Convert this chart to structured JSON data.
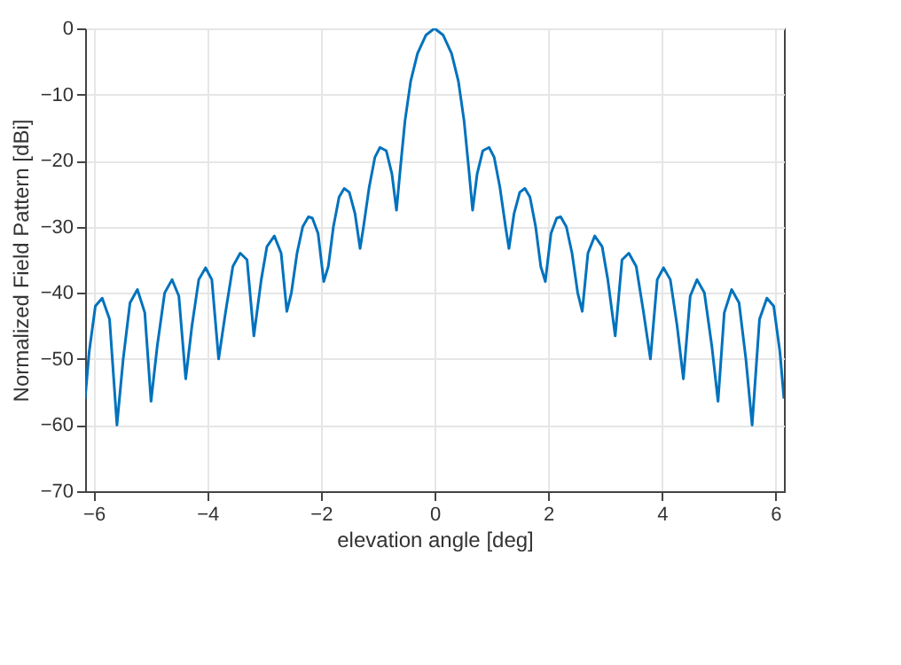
{
  "chart_data": {
    "type": "line",
    "xlabel": "elevation angle [deg]",
    "ylabel": "Normalized Field Pattern [dBi]",
    "xlim": [
      -6.15,
      6.15
    ],
    "ylim": [
      -70,
      0
    ],
    "xticks": [
      -6,
      -4,
      -2,
      0,
      2,
      4,
      6
    ],
    "yticks": [
      -70,
      -60,
      -50,
      -40,
      -30,
      -20,
      -10,
      0
    ],
    "grid": true,
    "marker": "none",
    "line_style": "solid",
    "x": [
      -6.15,
      -6.08,
      -5.97,
      -5.85,
      -5.72,
      -5.59,
      -5.48,
      -5.36,
      -5.23,
      -5.1,
      -4.99,
      -4.88,
      -4.75,
      -4.62,
      -4.5,
      -4.38,
      -4.27,
      -4.15,
      -4.03,
      -3.92,
      -3.8,
      -3.68,
      -3.55,
      -3.42,
      -3.3,
      -3.18,
      -3.05,
      -2.95,
      -2.82,
      -2.7,
      -2.6,
      -2.52,
      -2.42,
      -2.32,
      -2.22,
      -2.15,
      -2.05,
      -1.95,
      -1.87,
      -1.78,
      -1.68,
      -1.59,
      -1.5,
      -1.4,
      -1.31,
      -1.25,
      -1.15,
      -1.05,
      -0.96,
      -0.85,
      -0.75,
      -0.67,
      -0.6,
      -0.52,
      -0.42,
      -0.3,
      -0.15,
      0,
      0.15,
      0.3,
      0.42,
      0.52,
      0.6,
      0.67,
      0.75,
      0.85,
      0.96,
      1.05,
      1.15,
      1.25,
      1.31,
      1.4,
      1.5,
      1.59,
      1.68,
      1.78,
      1.87,
      1.95,
      2.05,
      2.15,
      2.22,
      2.32,
      2.42,
      2.52,
      2.6,
      2.7,
      2.82,
      2.95,
      3.05,
      3.18,
      3.3,
      3.42,
      3.55,
      3.68,
      3.8,
      3.92,
      4.03,
      4.15,
      4.27,
      4.38,
      4.5,
      4.62,
      4.75,
      4.88,
      4.99,
      5.1,
      5.23,
      5.36,
      5.48,
      5.59,
      5.72,
      5.85,
      5.97,
      6.08,
      6.15
    ],
    "series": [
      {
        "color": "#0072bd",
        "values": [
          -56,
          -49,
          -42,
          -40.8,
          -44,
          -60,
          -50,
          -41.5,
          -39.5,
          -43,
          -56.4,
          -48,
          -40,
          -38,
          -40.5,
          -53,
          -45,
          -38,
          -36.2,
          -38,
          -50,
          -43,
          -36,
          -34,
          -35,
          -46.5,
          -38,
          -33,
          -31.4,
          -34,
          -42.8,
          -40,
          -34,
          -30,
          -28.5,
          -28.7,
          -31,
          -38.3,
          -36,
          -30,
          -25.5,
          -24.2,
          -24.8,
          -28,
          -33.3,
          -30,
          -24,
          -19.5,
          -18,
          -18.5,
          -22,
          -27.5,
          -21,
          -14,
          -8,
          -3.8,
          -1,
          0,
          -1,
          -3.8,
          -8,
          -14,
          -21,
          -27.5,
          -22,
          -18.5,
          -18,
          -19.5,
          -24,
          -30,
          -33.3,
          -28,
          -24.8,
          -24.2,
          -25.5,
          -30,
          -36,
          -38.3,
          -31,
          -28.7,
          -28.5,
          -30,
          -34,
          -40,
          -42.8,
          -34,
          -31.4,
          -33,
          -38,
          -46.5,
          -35,
          -34,
          -36,
          -43,
          -50,
          -38,
          -36.2,
          -38,
          -45,
          -53,
          -40.5,
          -38,
          -40,
          -48,
          -56.4,
          -43,
          -39.5,
          -41.5,
          -50,
          -60,
          -44,
          -40.8,
          -42,
          -49,
          -56
        ]
      }
    ]
  }
}
